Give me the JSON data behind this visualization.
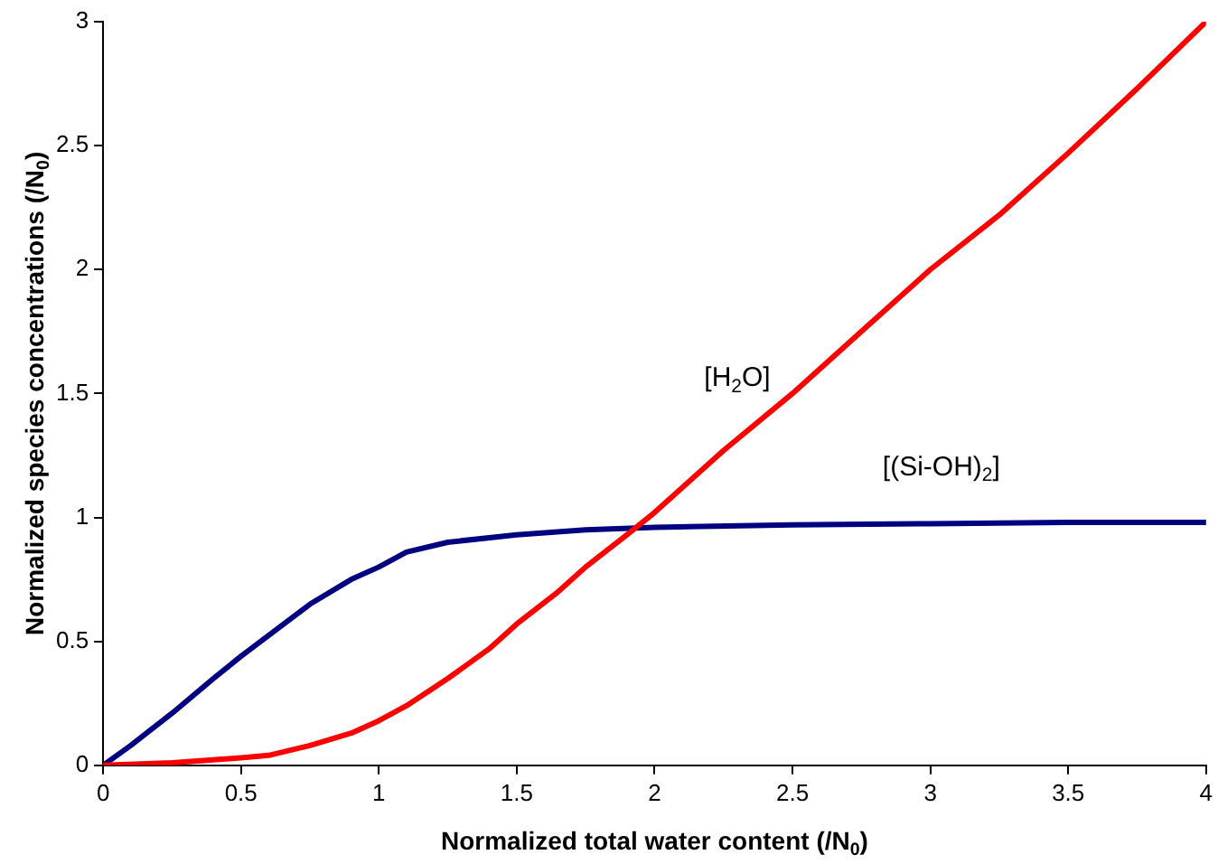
{
  "chart_data": {
    "type": "line",
    "xlabel": "Normalized total water content (/N$_{0}$)",
    "ylabel": "Normalized species concentrations (/N$_{0}$)",
    "xlim": [
      0,
      4
    ],
    "xticks": [
      0,
      0.5,
      1,
      1.5,
      2,
      2.5,
      3,
      3.5,
      4
    ],
    "ylim": [
      0,
      3
    ],
    "yticks": [
      0,
      0.5,
      1,
      1.5,
      2,
      2.5,
      3
    ],
    "grid": false,
    "legend": false,
    "marker": "none",
    "line_style": "solid",
    "series": [
      {
        "name": "[H$_{2}$O]",
        "color": "#ff0000",
        "x": [
          0,
          0.25,
          0.5,
          0.6,
          0.75,
          0.9,
          1.0,
          1.1,
          1.25,
          1.4,
          1.5,
          1.65,
          1.75,
          1.9,
          2.0,
          2.25,
          2.5,
          2.75,
          3.0,
          3.25,
          3.5,
          3.75,
          4.0
        ],
        "values": [
          0,
          0.01,
          0.03,
          0.04,
          0.08,
          0.13,
          0.18,
          0.24,
          0.35,
          0.47,
          0.57,
          0.7,
          0.8,
          0.93,
          1.02,
          1.27,
          1.5,
          1.75,
          2.0,
          2.22,
          2.47,
          2.73,
          3.0
        ]
      },
      {
        "name": "[(Si-OH)$_{2}$]",
        "color": "#000080",
        "x": [
          0,
          0.1,
          0.25,
          0.4,
          0.5,
          0.75,
          0.9,
          1.0,
          1.1,
          1.25,
          1.5,
          1.75,
          2.0,
          2.5,
          3.0,
          3.5,
          4.0
        ],
        "values": [
          0,
          0.08,
          0.21,
          0.35,
          0.44,
          0.65,
          0.75,
          0.8,
          0.86,
          0.9,
          0.93,
          0.95,
          0.96,
          0.97,
          0.975,
          0.98,
          0.98
        ]
      }
    ]
  }
}
